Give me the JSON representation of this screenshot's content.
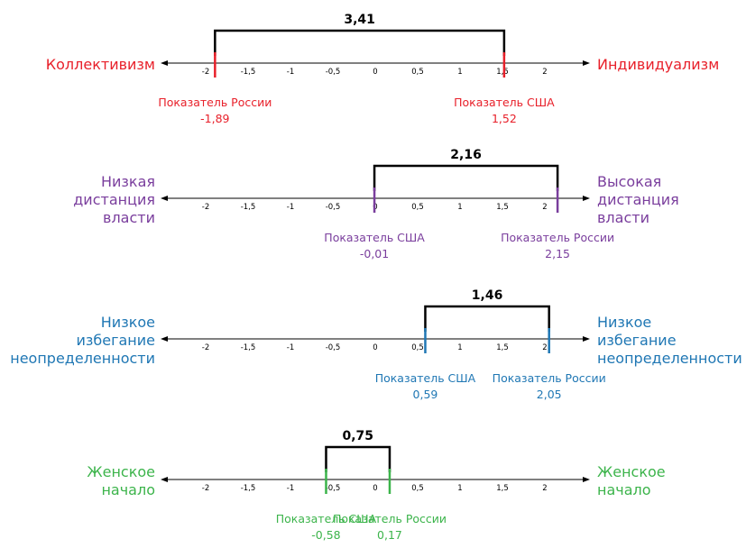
{
  "tick_labels": [
    "-2",
    "-1,5",
    "-1",
    "-0,5",
    "0",
    "0,5",
    "1",
    "1,5",
    "2"
  ],
  "tick_values": [
    -2,
    -1.5,
    -1,
    -0.5,
    0,
    0.5,
    1,
    1.5,
    2
  ],
  "scales": [
    {
      "id": "individualism",
      "color": "#e8202a",
      "left_label": [
        "Коллективизм"
      ],
      "right_label": [
        "Индивидуализм"
      ],
      "difference": "3,41",
      "markers": [
        {
          "value": -1.89,
          "caption": "Показатель России",
          "value_label": "-1,89"
        },
        {
          "value": 1.52,
          "caption": "Показатель США",
          "value_label": "1,52"
        }
      ]
    },
    {
      "id": "power-distance",
      "color": "#7a3e9d",
      "left_label": [
        "Низкая",
        "дистанция",
        "власти"
      ],
      "right_label": [
        "Высокая",
        "дистанция",
        "власти"
      ],
      "difference": "2,16",
      "markers": [
        {
          "value": -0.01,
          "caption": "Показатель США",
          "value_label": "-0,01"
        },
        {
          "value": 2.15,
          "caption": "Показатель России",
          "value_label": "2,15"
        }
      ]
    },
    {
      "id": "uncertainty-avoidance",
      "color": "#1f77b4",
      "left_label": [
        "Низкое",
        "избегание",
        "неопределенности"
      ],
      "right_label": [
        "Низкое",
        "избегание",
        "неопределенности"
      ],
      "difference": "1,46",
      "markers": [
        {
          "value": 0.59,
          "caption": "Показатель США",
          "value_label": "0,59"
        },
        {
          "value": 2.05,
          "caption": "Показатель России",
          "value_label": "2,05"
        }
      ]
    },
    {
      "id": "masculinity",
      "color": "#3cb44b",
      "left_label": [
        "Женское",
        "начало"
      ],
      "right_label": [
        "Женское",
        "начало"
      ],
      "difference": "0,75",
      "markers": [
        {
          "value": -0.58,
          "caption": "Показатель США",
          "value_label": "-0,58"
        },
        {
          "value": 0.17,
          "caption": "Показатель России",
          "value_label": "0,17"
        }
      ]
    }
  ]
}
